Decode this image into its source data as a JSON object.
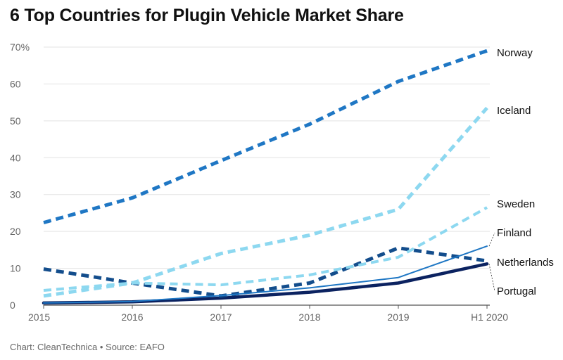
{
  "chart_data": {
    "type": "line",
    "title": "6 Top Countries for Plugin Vehicle Market Share",
    "footer": "Chart: CleanTechnica • Source: EAFO",
    "xlabel": "",
    "ylabel": "",
    "categories": [
      "2015",
      "2016",
      "2017",
      "2018",
      "2019",
      "H1 2020"
    ],
    "ylim": [
      0,
      70
    ],
    "yticks": [
      0,
      10,
      20,
      30,
      40,
      50,
      60,
      70
    ],
    "ytick_labels": [
      "0",
      "10",
      "20",
      "30",
      "40",
      "50",
      "60",
      "70%"
    ],
    "grid": true,
    "series": [
      {
        "name": "Norway",
        "values": [
          22.4,
          29.1,
          39.2,
          49.1,
          60.7,
          69.0
        ],
        "color": "#1f77c4",
        "dashed": true,
        "width": 5
      },
      {
        "name": "Iceland",
        "values": [
          2.5,
          6.0,
          14.0,
          19.0,
          26.0,
          53.5
        ],
        "color": "#8dd8f0",
        "dashed": true,
        "width": 5
      },
      {
        "name": "Sweden",
        "values": [
          4.0,
          6.0,
          5.5,
          8.2,
          13.0,
          26.5
        ],
        "color": "#8dd8f0",
        "dashed": true,
        "width": 4
      },
      {
        "name": "Finland",
        "values": [
          0.6,
          1.0,
          2.6,
          4.7,
          7.5,
          16.0
        ],
        "color": "#1f77c4",
        "dashed": false,
        "width": 2
      },
      {
        "name": "Netherlands",
        "values": [
          9.8,
          6.0,
          2.5,
          6.0,
          15.5,
          12.0
        ],
        "color": "#134d8c",
        "dashed": true,
        "width": 5
      },
      {
        "name": "Portugal",
        "values": [
          0.6,
          0.9,
          1.9,
          3.5,
          6.0,
          11.2
        ],
        "color": "#0b2260",
        "dashed": false,
        "width": 4.5
      }
    ]
  }
}
